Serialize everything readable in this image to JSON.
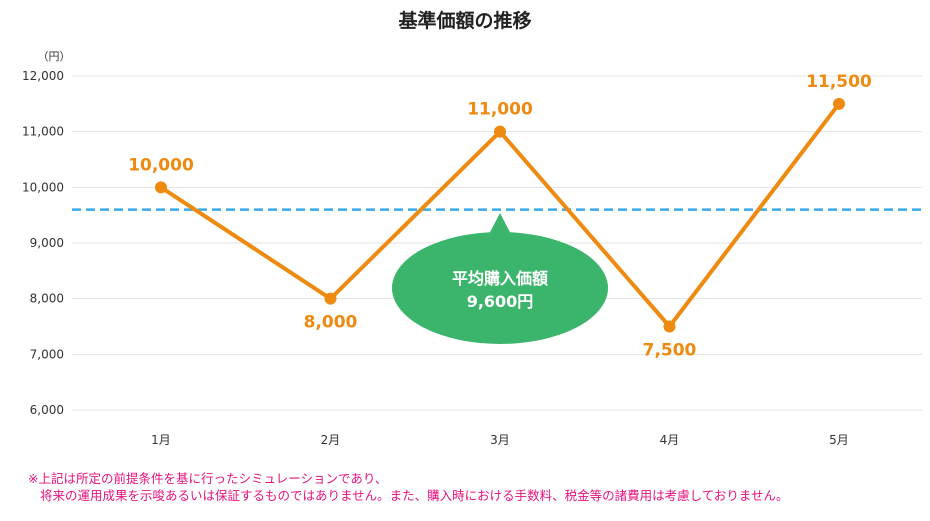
{
  "chart_data": {
    "type": "line",
    "title": "基準価額の推移",
    "ylabel": "（円）",
    "xlabel": "",
    "categories": [
      "1月",
      "2月",
      "3月",
      "4月",
      "5月"
    ],
    "y_ticks": [
      "6,000",
      "7,000",
      "8,000",
      "9,000",
      "10,000",
      "11,000",
      "12,000"
    ],
    "ylim": [
      6000,
      12000
    ],
    "grid": true,
    "series": [
      {
        "values": [
          10000,
          8000,
          11000,
          7500,
          11500
        ],
        "data_labels": [
          "10,000",
          "8,000",
          "11,000",
          "7,500",
          "11,500"
        ],
        "color": "#ee8a0f"
      }
    ],
    "reference_line": {
      "value": 9600,
      "style": "dashed",
      "color": "#3aa9e8"
    },
    "callout": {
      "line1": "平均購入価額",
      "line2": "9,600円",
      "color": "#3cb56c"
    }
  },
  "footnote": {
    "line1": "※上記は所定の前提条件を基に行ったシミュレーションであり、",
    "line2": "将来の運用成果を示唆あるいは保証するものではありません。また、購入時における手数料、税金等の諸費用は考慮しておりません。",
    "color": "#e6127e"
  }
}
